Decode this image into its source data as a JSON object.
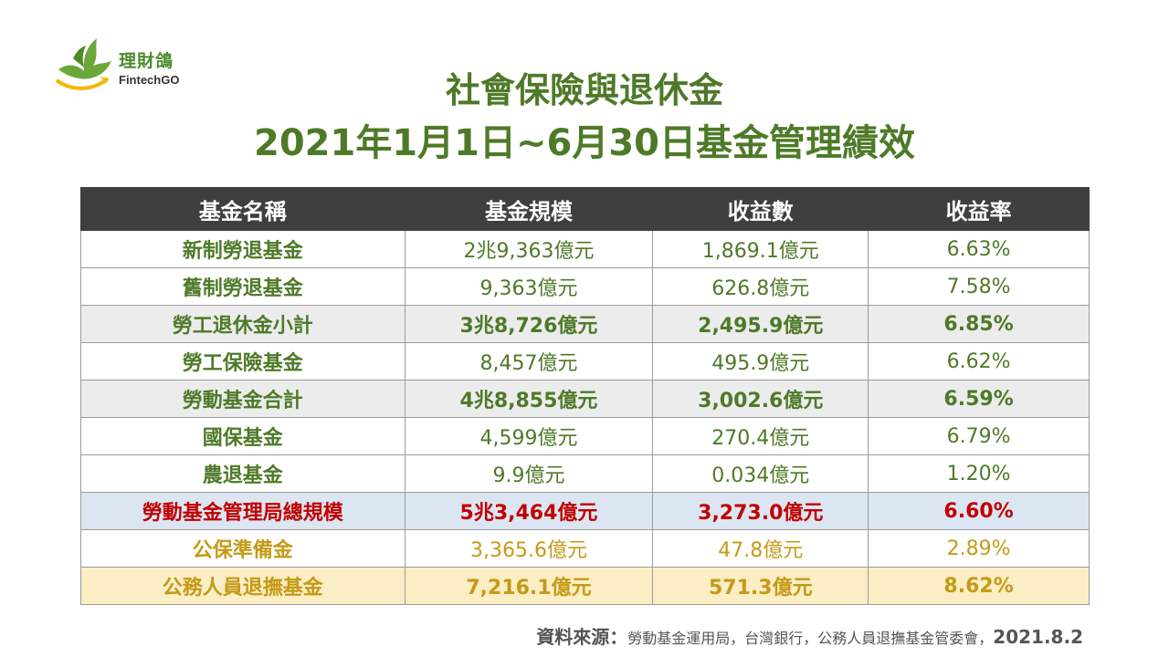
{
  "logo": {
    "name": "理財鴿",
    "sub": "FintechGO"
  },
  "title": {
    "line1": "社會保險與退休金",
    "line2": "2021年1月1日~6月30日基金管理績效"
  },
  "table": {
    "headers": [
      "基金名稱",
      "基金規模",
      "收益數",
      "收益率"
    ],
    "rows": [
      [
        "新制勞退基金",
        "2兆9,363億元",
        "1,869.1億元",
        "6.63%"
      ],
      [
        "舊制勞退基金",
        "9,363億元",
        "626.8億元",
        "7.58%"
      ],
      [
        "勞工退休金小計",
        "3兆8,726億元",
        "2,495.9億元",
        "6.85%"
      ],
      [
        "勞工保險基金",
        "8,457億元",
        "495.9億元",
        "6.62%"
      ],
      [
        "勞動基金合計",
        "4兆8,855億元",
        "3,002.6億元",
        "6.59%"
      ],
      [
        "國保基金",
        "4,599億元",
        "270.4億元",
        "6.79%"
      ],
      [
        "農退基金",
        "9.9億元",
        "0.034億元",
        "1.20%"
      ],
      [
        "勞動基金管理局總規模",
        "5兆3,464億元",
        "3,273.0億元",
        "6.60%"
      ],
      [
        "公保準備金",
        "3,365.6億元",
        "47.8億元",
        "2.89%"
      ],
      [
        "公務人員退撫基金",
        "7,216.1億元",
        "571.3億元",
        "8.62%"
      ]
    ]
  },
  "source": {
    "label": "資料來源：",
    "text": "勞動基金運用局，台灣銀行，公務人員退撫基金管委會，",
    "date": "2021.8.2"
  },
  "colors": {
    "green": "#4e7a28",
    "red": "#c00000",
    "gold": "#c49a16",
    "header_bg": "#3f3f3f"
  }
}
